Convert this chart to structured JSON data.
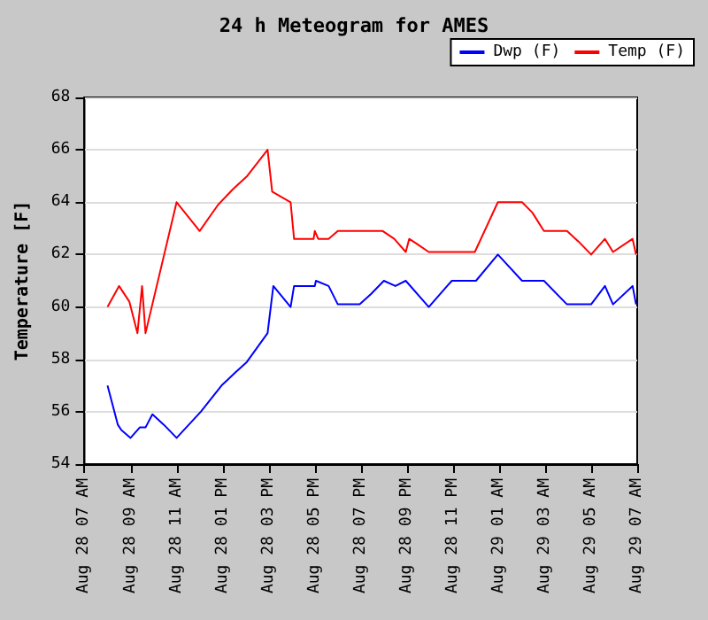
{
  "chart_data": {
    "type": "line",
    "title": "24 h Meteogram for AMES",
    "ylabel": "Temperature [F]",
    "xlim": [
      "--08-28T07:00",
      "--08-29T07:00"
    ],
    "xticks": [
      {
        "value": "--08-28T07:00",
        "label": "Aug 28 07 AM"
      },
      {
        "value": "--08-28T09:00",
        "label": "Aug 28 09 AM"
      },
      {
        "value": "--08-28T11:00",
        "label": "Aug 28 11 AM"
      },
      {
        "value": "--08-28T13:00",
        "label": "Aug 28 01 PM"
      },
      {
        "value": "--08-28T15:00",
        "label": "Aug 28 03 PM"
      },
      {
        "value": "--08-28T17:00",
        "label": "Aug 28 05 PM"
      },
      {
        "value": "--08-28T19:00",
        "label": "Aug 28 07 PM"
      },
      {
        "value": "--08-28T21:00",
        "label": "Aug 28 09 PM"
      },
      {
        "value": "--08-28T23:00",
        "label": "Aug 28 11 PM"
      },
      {
        "value": "--08-29T01:00",
        "label": "Aug 29 01 AM"
      },
      {
        "value": "--08-29T03:00",
        "label": "Aug 29 03 AM"
      },
      {
        "value": "--08-29T05:00",
        "label": "Aug 29 05 AM"
      },
      {
        "value": "--08-29T07:00",
        "label": "Aug 29 07 AM"
      }
    ],
    "ylim": [
      54,
      68
    ],
    "yticks": [
      54,
      56,
      58,
      60,
      62,
      64,
      66,
      68
    ],
    "grid": "y",
    "legend": "top right",
    "marker": "none",
    "line_style": "solid",
    "series": [
      {
        "name": "Dwp (F)",
        "color": "#0000ff",
        "x": [
          "--08-28T08:00",
          "--08-28T08:27",
          "--08-28T08:36",
          "--08-28T09:00",
          "--08-28T09:24",
          "--08-28T09:39",
          "--08-28T09:57",
          "--08-28T10:27",
          "--08-28T11:00",
          "--08-28T12:03",
          "--08-28T12:57",
          "--08-28T13:33",
          "--08-28T14:03",
          "--08-28T14:57",
          "--08-28T15:12",
          "--08-28T15:57",
          "--08-28T16:06",
          "--08-28T17:00",
          "--08-28T17:03",
          "--08-28T17:36",
          "--08-28T18:00",
          "--08-28T18:57",
          "--08-28T19:27",
          "--08-28T20:00",
          "--08-28T20:30",
          "--08-28T20:57",
          "--08-28T21:57",
          "--08-28T22:57",
          "--08-29T00:00",
          "--08-29T00:57",
          "--08-29T02:00",
          "--08-29T02:57",
          "--08-29T03:57",
          "--08-29T05:00",
          "--08-29T05:36",
          "--08-29T05:57",
          "--08-29T06:48",
          "--08-29T06:57"
        ],
        "values": [
          57,
          55.5,
          55.3,
          55,
          55.4,
          55.4,
          55.9,
          55.5,
          55,
          56,
          57,
          57.5,
          57.9,
          59,
          60.8,
          60,
          60.8,
          60.8,
          61,
          60.8,
          60.1,
          60.1,
          60.5,
          61,
          60.8,
          61,
          60,
          61,
          61,
          62,
          61,
          61,
          60.1,
          60.1,
          60.8,
          60.1,
          60.8,
          60.1
        ]
      },
      {
        "name": "Temp (F)",
        "color": "#ff0000",
        "x": [
          "--08-28T08:00",
          "--08-28T08:30",
          "--08-28T08:57",
          "--08-28T09:18",
          "--08-28T09:30",
          "--08-28T09:39",
          "--08-28T11:00",
          "--08-28T12:00",
          "--08-28T12:48",
          "--08-28T13:27",
          "--08-28T14:04",
          "--08-28T14:57",
          "--08-28T15:09",
          "--08-28T15:57",
          "--08-28T16:06",
          "--08-28T16:57",
          "--08-28T17:00",
          "--08-28T17:09",
          "--08-28T17:36",
          "--08-28T18:00",
          "--08-28T19:57",
          "--08-28T20:27",
          "--08-28T20:57",
          "--08-28T21:06",
          "--08-28T21:27",
          "--08-28T21:57",
          "--08-28T23:57",
          "--08-29T00:57",
          "--08-29T02:00",
          "--08-29T02:27",
          "--08-29T02:57",
          "--08-29T03:57",
          "--08-29T04:27",
          "--08-29T05:00",
          "--08-29T05:36",
          "--08-29T05:57",
          "--08-29T06:48",
          "--08-29T06:57"
        ],
        "values": [
          60,
          60.8,
          60.2,
          59,
          60.8,
          59,
          64,
          62.9,
          63.9,
          64.5,
          65,
          66,
          64.4,
          64,
          62.6,
          62.6,
          62.9,
          62.6,
          62.6,
          62.9,
          62.9,
          62.6,
          62.1,
          62.6,
          62.4,
          62.1,
          62.1,
          64,
          64,
          63.6,
          62.9,
          62.9,
          62.5,
          62,
          62.6,
          62.1,
          62.6,
          62
        ]
      }
    ]
  }
}
